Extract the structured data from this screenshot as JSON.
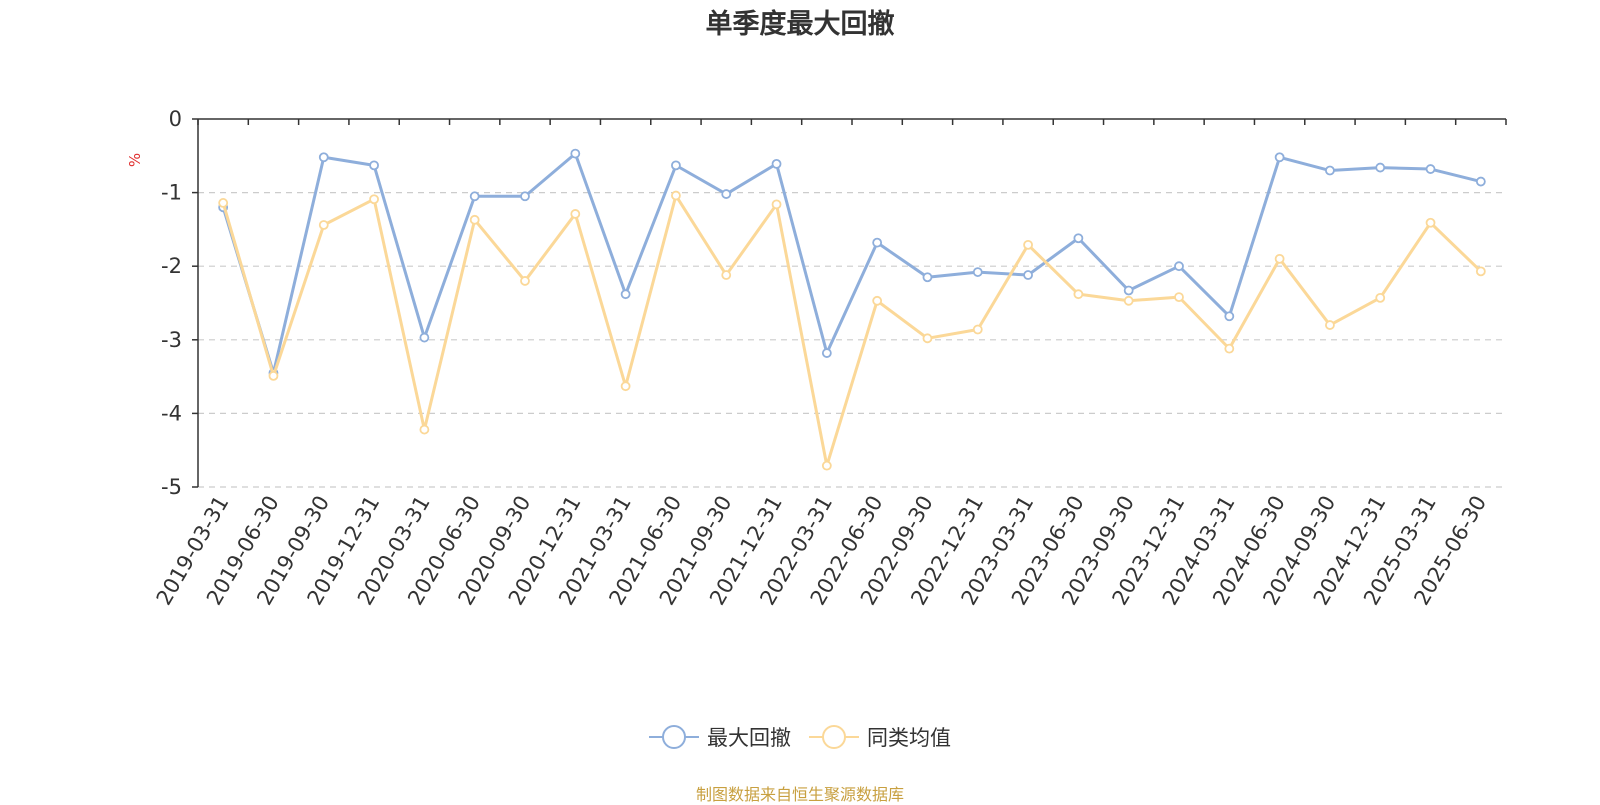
{
  "chart_data": {
    "type": "line",
    "title": "单季度最大回撤",
    "ylabel": "%",
    "ylim": [
      -5,
      0
    ],
    "yticks": [
      0,
      -1,
      -2,
      -3,
      -4,
      -5
    ],
    "grid": true,
    "legend_position": "bottom-center",
    "categories": [
      "2019-03-31",
      "2019-06-30",
      "2019-09-30",
      "2019-12-31",
      "2020-03-31",
      "2020-06-30",
      "2020-09-30",
      "2020-12-31",
      "2021-03-31",
      "2021-06-30",
      "2021-09-30",
      "2021-12-31",
      "2022-03-31",
      "2022-06-30",
      "2022-09-30",
      "2022-12-31",
      "2023-03-31",
      "2023-06-30",
      "2023-09-30",
      "2023-12-31",
      "2024-03-31",
      "2024-06-30",
      "2024-09-30",
      "2024-12-31",
      "2025-03-31",
      "2025-06-30"
    ],
    "series": [
      {
        "name": "最大回撤",
        "color": "#8eaedb",
        "values": [
          -1.2,
          -3.45,
          -0.52,
          -0.63,
          -2.97,
          -1.05,
          -1.05,
          -0.47,
          -2.38,
          -0.63,
          -1.02,
          -0.61,
          -3.18,
          -1.68,
          -2.15,
          -2.08,
          -2.12,
          -1.62,
          -2.33,
          -2.0,
          -2.68,
          -0.52,
          -0.7,
          -0.66,
          -0.68,
          -0.85
        ]
      },
      {
        "name": "同类均值",
        "color": "#fbd898",
        "values": [
          -1.14,
          -3.49,
          -1.44,
          -1.09,
          -4.22,
          -1.37,
          -2.2,
          -1.29,
          -3.63,
          -1.04,
          -2.12,
          -1.16,
          -4.71,
          -2.47,
          -2.98,
          -2.86,
          -1.71,
          -2.38,
          -2.47,
          -2.42,
          -3.12,
          -1.9,
          -2.8,
          -2.43,
          -1.41,
          -2.07
        ]
      }
    ]
  },
  "footer": {
    "source": "制图数据来自恒生聚源数据库"
  },
  "colors": {
    "axis": "#333333",
    "grid": "#cccccc",
    "ylabel": "#e03030",
    "source": "#c8a040"
  }
}
